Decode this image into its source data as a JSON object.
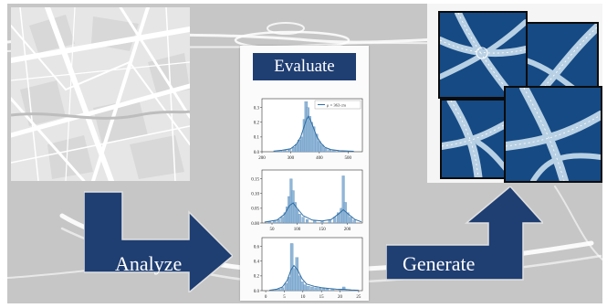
{
  "colors": {
    "navy": "#1f3e72",
    "tile_blue": "#154a84",
    "hist_bar": "#8fb6d8",
    "kde_line": "#2f6ea5"
  },
  "labels": {
    "evaluate": "Evaluate",
    "analyze": "Analyze",
    "generate": "Generate"
  },
  "chart_data": [
    {
      "type": "bar",
      "legend": "μ = 363 cm",
      "xticks": [
        "200",
        "300",
        "400",
        "500"
      ],
      "yticks": [
        "0.0",
        "0.1",
        "0.2",
        "0.3"
      ],
      "xlim": [
        200,
        550
      ],
      "ylim": [
        0,
        0.36
      ],
      "bins": [
        {
          "x": 250,
          "y": 0.005
        },
        {
          "x": 265,
          "y": 0.008
        },
        {
          "x": 280,
          "y": 0.012
        },
        {
          "x": 295,
          "y": 0.018
        },
        {
          "x": 310,
          "y": 0.03
        },
        {
          "x": 320,
          "y": 0.05
        },
        {
          "x": 330,
          "y": 0.08
        },
        {
          "x": 340,
          "y": 0.1
        },
        {
          "x": 348,
          "y": 0.22
        },
        {
          "x": 354,
          "y": 0.34
        },
        {
          "x": 360,
          "y": 0.3
        },
        {
          "x": 366,
          "y": 0.24
        },
        {
          "x": 372,
          "y": 0.2
        },
        {
          "x": 380,
          "y": 0.17
        },
        {
          "x": 390,
          "y": 0.12
        },
        {
          "x": 400,
          "y": 0.07
        },
        {
          "x": 410,
          "y": 0.045
        },
        {
          "x": 422,
          "y": 0.025
        },
        {
          "x": 436,
          "y": 0.015
        },
        {
          "x": 450,
          "y": 0.01
        },
        {
          "x": 470,
          "y": 0.006
        },
        {
          "x": 495,
          "y": 0.004
        }
      ],
      "kde": [
        [
          240,
          0.004
        ],
        [
          270,
          0.01
        ],
        [
          300,
          0.02
        ],
        [
          320,
          0.05
        ],
        [
          335,
          0.1
        ],
        [
          345,
          0.16
        ],
        [
          355,
          0.22
        ],
        [
          362,
          0.24
        ],
        [
          370,
          0.21
        ],
        [
          380,
          0.16
        ],
        [
          392,
          0.1
        ],
        [
          405,
          0.06
        ],
        [
          420,
          0.03
        ],
        [
          440,
          0.015
        ],
        [
          470,
          0.007
        ],
        [
          520,
          0.003
        ]
      ]
    },
    {
      "type": "bar",
      "xticks": [
        "50",
        "100",
        "150",
        "200"
      ],
      "yticks": [
        "0.00",
        "0.05",
        "0.10",
        "0.15"
      ],
      "xlim": [
        30,
        230
      ],
      "ylim": [
        0,
        0.18
      ],
      "bins": [
        {
          "x": 45,
          "y": 0.004
        },
        {
          "x": 55,
          "y": 0.008
        },
        {
          "x": 63,
          "y": 0.012
        },
        {
          "x": 70,
          "y": 0.02
        },
        {
          "x": 76,
          "y": 0.035
        },
        {
          "x": 80,
          "y": 0.055
        },
        {
          "x": 84,
          "y": 0.09
        },
        {
          "x": 88,
          "y": 0.15
        },
        {
          "x": 92,
          "y": 0.11
        },
        {
          "x": 96,
          "y": 0.07
        },
        {
          "x": 100,
          "y": 0.045
        },
        {
          "x": 105,
          "y": 0.03
        },
        {
          "x": 112,
          "y": 0.02
        },
        {
          "x": 120,
          "y": 0.012
        },
        {
          "x": 135,
          "y": 0.008
        },
        {
          "x": 150,
          "y": 0.006
        },
        {
          "x": 165,
          "y": 0.01
        },
        {
          "x": 175,
          "y": 0.02
        },
        {
          "x": 182,
          "y": 0.035
        },
        {
          "x": 188,
          "y": 0.05
        },
        {
          "x": 192,
          "y": 0.16
        },
        {
          "x": 196,
          "y": 0.07
        },
        {
          "x": 201,
          "y": 0.035
        },
        {
          "x": 207,
          "y": 0.02
        },
        {
          "x": 214,
          "y": 0.01
        }
      ],
      "kde": [
        [
          35,
          0.003
        ],
        [
          60,
          0.01
        ],
        [
          75,
          0.03
        ],
        [
          85,
          0.06
        ],
        [
          92,
          0.068
        ],
        [
          100,
          0.05
        ],
        [
          112,
          0.025
        ],
        [
          130,
          0.01
        ],
        [
          150,
          0.007
        ],
        [
          168,
          0.012
        ],
        [
          182,
          0.03
        ],
        [
          192,
          0.045
        ],
        [
          202,
          0.03
        ],
        [
          215,
          0.012
        ],
        [
          228,
          0.004
        ]
      ]
    },
    {
      "type": "bar",
      "xticks": [
        "0",
        "5",
        "10",
        "15",
        "20",
        "25"
      ],
      "yticks": [
        "0.0",
        "0.2",
        "0.4",
        "0.6"
      ],
      "xlim": [
        -1,
        26
      ],
      "ylim": [
        0,
        0.72
      ],
      "bins": [
        {
          "x": 2.5,
          "y": 0.01
        },
        {
          "x": 3.5,
          "y": 0.02
        },
        {
          "x": 4.5,
          "y": 0.04
        },
        {
          "x": 5.5,
          "y": 0.1
        },
        {
          "x": 6.3,
          "y": 0.18
        },
        {
          "x": 7,
          "y": 0.64
        },
        {
          "x": 7.7,
          "y": 0.3
        },
        {
          "x": 8.4,
          "y": 0.45
        },
        {
          "x": 9.1,
          "y": 0.2
        },
        {
          "x": 9.8,
          "y": 0.12
        },
        {
          "x": 10.6,
          "y": 0.08
        },
        {
          "x": 11.5,
          "y": 0.06
        },
        {
          "x": 12.5,
          "y": 0.05
        },
        {
          "x": 13.5,
          "y": 0.04
        },
        {
          "x": 14.5,
          "y": 0.035
        },
        {
          "x": 15.5,
          "y": 0.03
        },
        {
          "x": 16.5,
          "y": 0.025
        },
        {
          "x": 18,
          "y": 0.02
        },
        {
          "x": 20,
          "y": 0.015
        },
        {
          "x": 21,
          "y": 0.05
        },
        {
          "x": 22,
          "y": 0.012
        },
        {
          "x": 23.5,
          "y": 0.008
        }
      ],
      "kde": [
        [
          1,
          0.005
        ],
        [
          3,
          0.02
        ],
        [
          4.5,
          0.05
        ],
        [
          5.8,
          0.14
        ],
        [
          6.8,
          0.28
        ],
        [
          7.6,
          0.34
        ],
        [
          8.6,
          0.28
        ],
        [
          9.8,
          0.16
        ],
        [
          11,
          0.09
        ],
        [
          13,
          0.06
        ],
        [
          15,
          0.04
        ],
        [
          17,
          0.03
        ],
        [
          19,
          0.02
        ],
        [
          21,
          0.018
        ],
        [
          23,
          0.01
        ],
        [
          25,
          0.005
        ]
      ]
    }
  ]
}
